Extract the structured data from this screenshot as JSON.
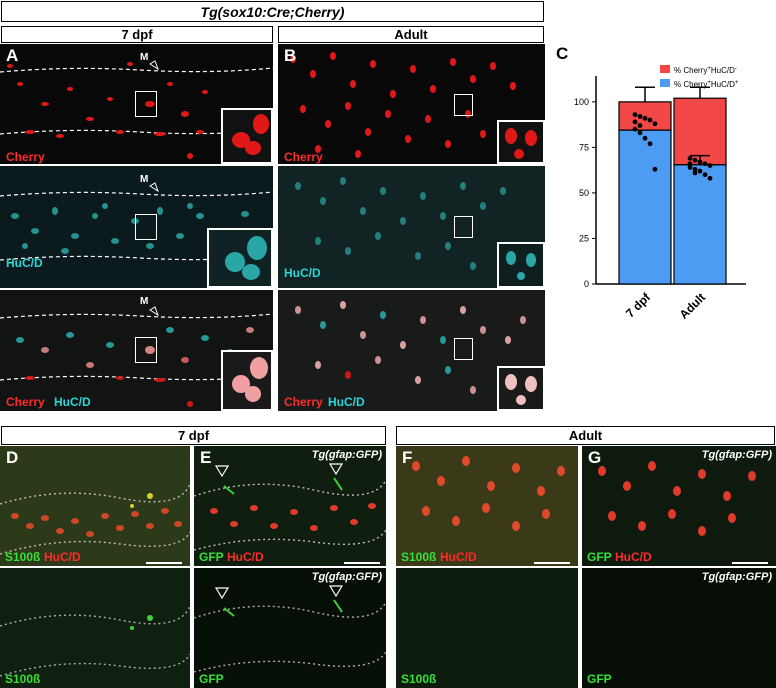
{
  "figure": {
    "title": "Tg(sox10:Cre;Cherry)",
    "top_headers": {
      "left": "7 dpf",
      "right": "Adult"
    },
    "bottom_headers": {
      "left": "7 dpf",
      "right": "Adult"
    },
    "panels": {
      "A": {
        "letter": "A",
        "m_label": "M",
        "rows": [
          {
            "label1": "Cherry",
            "label2": ""
          },
          {
            "label1": "",
            "label2": "HuC/D"
          },
          {
            "label1": "Cherry",
            "label2": "HuC/D"
          }
        ]
      },
      "B": {
        "letter": "B",
        "rows": [
          {
            "label1": "Cherry",
            "label2": ""
          },
          {
            "label1": "",
            "label2": "HuC/D"
          },
          {
            "label1": "Cherry",
            "label2": "HuC/D"
          }
        ]
      },
      "D": {
        "letter": "D",
        "top_label1": "S100ß",
        "top_label2": "HuC/D",
        "bottom_label": "S100ß"
      },
      "E": {
        "letter": "E",
        "tg": "Tg(gfap:GFP)",
        "top_label1": "GFP",
        "top_label2": "HuC/D",
        "bottom_label": "GFP"
      },
      "F": {
        "letter": "F",
        "top_label1": "S100ß",
        "top_label2": "HuC/D",
        "bottom_label": "S100ß"
      },
      "G": {
        "letter": "G",
        "tg": "Tg(gfap:GFP)",
        "top_label1": "GFP",
        "top_label2": "HuC/D",
        "bottom_label": "GFP"
      }
    },
    "colors": {
      "cherry": "#ff2a2a",
      "cyan": "#2ad6d6",
      "green": "#37e037",
      "bar_blue": "#4d9cf4",
      "bar_red": "#f24747"
    }
  },
  "chart_data": {
    "type": "bar",
    "panel_letter": "C",
    "categories": [
      "7 dpf",
      "Adult"
    ],
    "series": [
      {
        "name": "% Cherry+HuC/D+",
        "values": [
          84.5,
          65.5
        ],
        "error": [
          0,
          5
        ]
      },
      {
        "name": "% Cherry+HuC/D-",
        "values": [
          15.5,
          36.5
        ],
        "error": [
          8,
          6
        ]
      }
    ],
    "points": {
      "7 dpf": [
        93,
        92,
        91,
        90,
        88,
        85,
        83,
        80,
        77,
        63,
        89,
        87
      ],
      "Adult": [
        69,
        68,
        67,
        66,
        65,
        64,
        63,
        62,
        60,
        58,
        66,
        61
      ]
    },
    "legend": {
      "entry1": {
        "base": "% Cherry",
        "sup1": "+",
        "mid": "HuC/D",
        "sup2": "-"
      },
      "entry2": {
        "base": "% Cherry",
        "sup1": "+",
        "mid": "HuC/D",
        "sup2": "+"
      }
    },
    "yticks": [
      "0",
      "25",
      "50",
      "75",
      "100"
    ],
    "ylim": [
      0,
      112
    ],
    "stacked": true,
    "legend_position": "top-right"
  }
}
